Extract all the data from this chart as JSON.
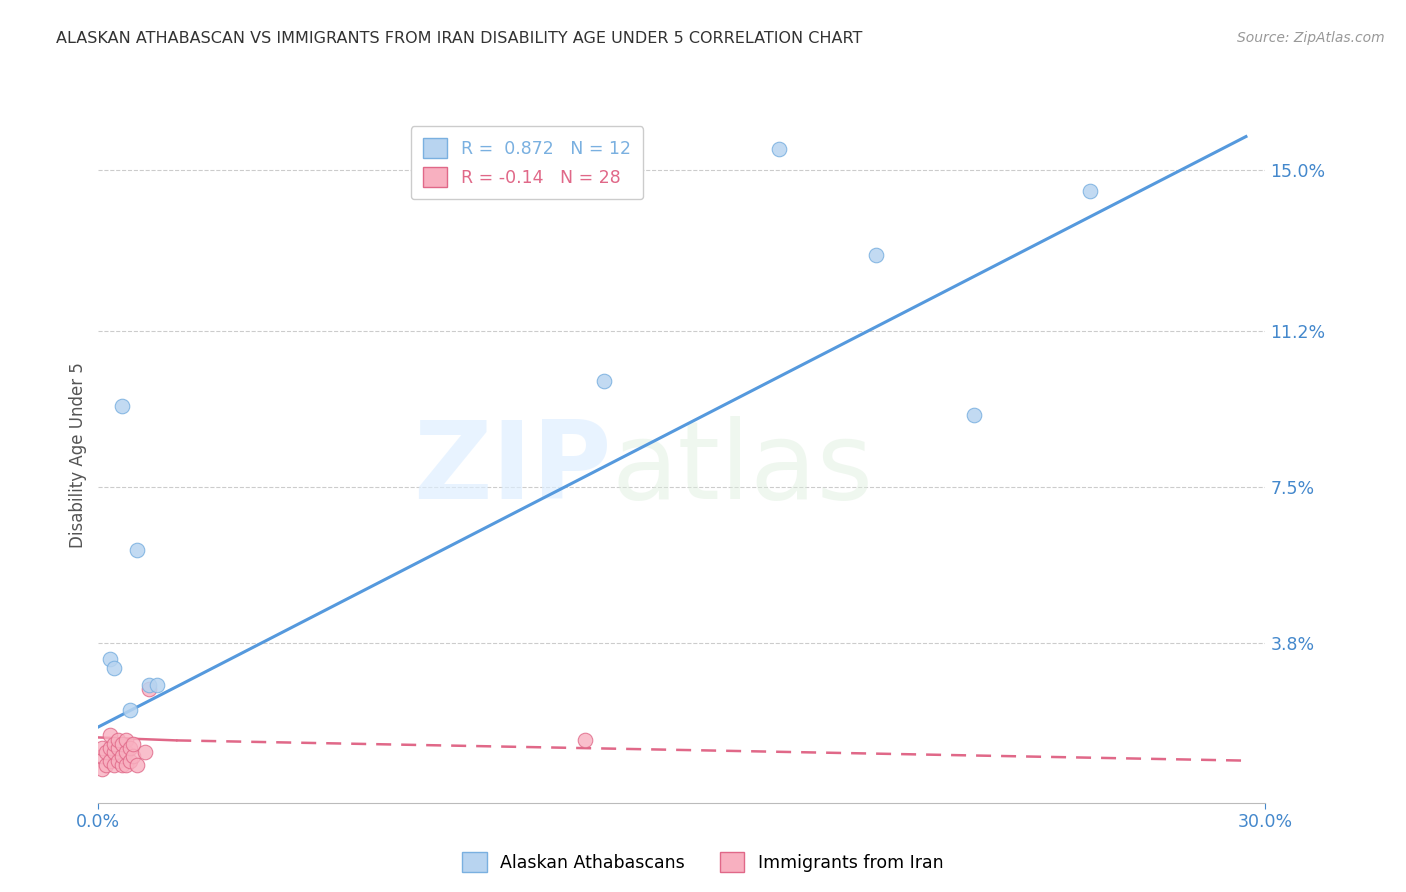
{
  "title": "ALASKAN ATHABASCAN VS IMMIGRANTS FROM IRAN DISABILITY AGE UNDER 5 CORRELATION CHART",
  "source": "Source: ZipAtlas.com",
  "ylabel": "Disability Age Under 5",
  "xlim": [
    0.0,
    0.3
  ],
  "ylim": [
    0.0,
    0.165
  ],
  "xtick_labels": [
    "0.0%",
    "30.0%"
  ],
  "xtick_positions": [
    0.0,
    0.3
  ],
  "ytick_labels": [
    "3.8%",
    "7.5%",
    "11.2%",
    "15.0%"
  ],
  "ytick_positions": [
    0.038,
    0.075,
    0.112,
    0.15
  ],
  "background_color": "#ffffff",
  "blue_scatter": {
    "x": [
      0.003,
      0.004,
      0.01,
      0.013,
      0.015,
      0.175,
      0.2,
      0.255,
      0.225,
      0.13,
      0.006,
      0.008
    ],
    "y": [
      0.034,
      0.032,
      0.06,
      0.028,
      0.028,
      0.155,
      0.13,
      0.145,
      0.092,
      0.1,
      0.094,
      0.022
    ],
    "color": "#b8d4f0",
    "edgecolor": "#7ab0e0",
    "label": "Alaskan Athabascans",
    "R": 0.872,
    "N": 12,
    "size": 110
  },
  "pink_scatter": {
    "x": [
      0.001,
      0.001,
      0.001,
      0.002,
      0.002,
      0.003,
      0.003,
      0.003,
      0.004,
      0.004,
      0.004,
      0.005,
      0.005,
      0.005,
      0.006,
      0.006,
      0.006,
      0.007,
      0.007,
      0.007,
      0.008,
      0.008,
      0.009,
      0.009,
      0.01,
      0.012,
      0.125,
      0.013
    ],
    "y": [
      0.008,
      0.011,
      0.013,
      0.009,
      0.012,
      0.01,
      0.013,
      0.016,
      0.009,
      0.012,
      0.014,
      0.01,
      0.013,
      0.015,
      0.009,
      0.011,
      0.014,
      0.009,
      0.012,
      0.015,
      0.01,
      0.013,
      0.011,
      0.014,
      0.009,
      0.012,
      0.015,
      0.027
    ],
    "color": "#f8b0c0",
    "edgecolor": "#e06888",
    "label": "Immigrants from Iran",
    "R": -0.14,
    "N": 28,
    "size": 110
  },
  "blue_line": {
    "color": "#5599dd",
    "linewidth": 2.2,
    "x_start": 0.0,
    "y_start": 0.018,
    "x_end": 0.295,
    "y_end": 0.158
  },
  "pink_line_solid": {
    "color": "#e06888",
    "linewidth": 1.8,
    "x_start": 0.0,
    "y_start": 0.0155,
    "x_end": 0.02,
    "y_end": 0.0148
  },
  "pink_line_dashed": {
    "color": "#e06888",
    "linewidth": 1.8,
    "x_start": 0.02,
    "y_start": 0.0148,
    "x_end": 0.295,
    "y_end": 0.01
  },
  "title_color": "#333333",
  "title_fontsize": 11.5,
  "tick_label_color": "#4488cc",
  "legend_blue_color": "#b8d4f0",
  "legend_pink_color": "#f8b0c0",
  "legend_blue_edge": "#7ab0e0",
  "legend_pink_edge": "#e06888"
}
